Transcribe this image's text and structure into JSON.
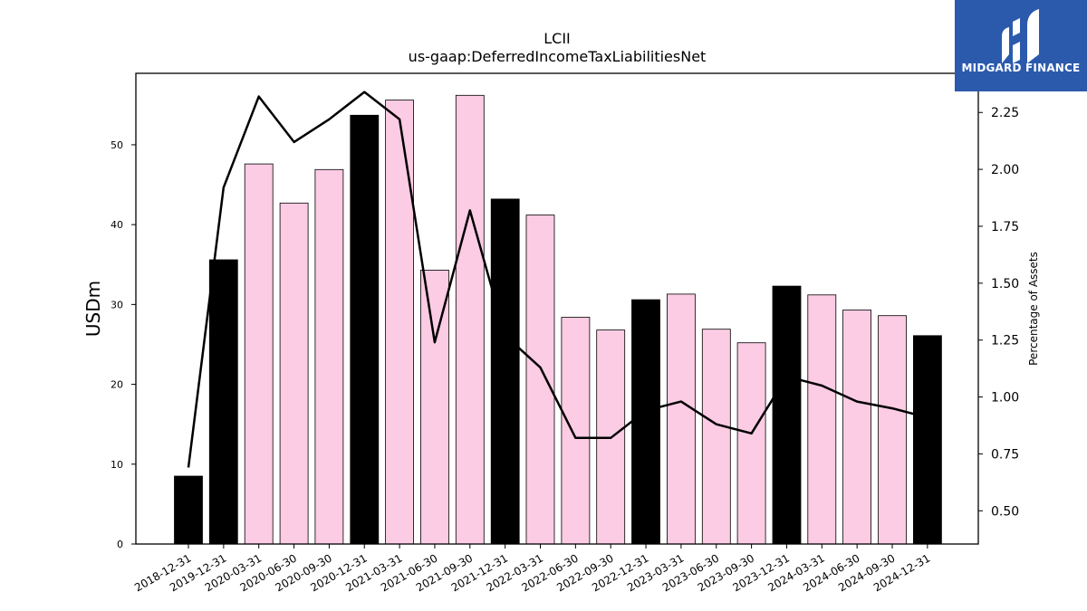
{
  "brand": {
    "name": "MIDGARD FINANCE",
    "color": "#2b5aad"
  },
  "chart_data": {
    "type": "bar",
    "title": "LCII",
    "subtitle": "us-gaap:DeferredIncomeTaxLiabilitiesNet",
    "ylabel": "USDm",
    "y2label": "Percentage of Assets",
    "categories": [
      "2018-12-31",
      "2019-12-31",
      "2020-03-31",
      "2020-06-30",
      "2020-09-30",
      "2020-12-31",
      "2021-03-31",
      "2021-06-30",
      "2021-09-30",
      "2021-12-31",
      "2022-03-31",
      "2022-06-30",
      "2022-09-30",
      "2022-12-31",
      "2023-03-31",
      "2023-06-30",
      "2023-09-30",
      "2023-12-31",
      "2024-03-31",
      "2024-06-30",
      "2024-09-30",
      "2024-12-31"
    ],
    "series": [
      {
        "kind": "bar",
        "axis": "left",
        "values": [
          8.5,
          35.6,
          47.6,
          42.7,
          46.9,
          53.7,
          55.6,
          34.3,
          56.2,
          43.2,
          41.2,
          28.4,
          26.8,
          30.6,
          31.3,
          26.9,
          25.2,
          32.3,
          31.2,
          29.3,
          28.6,
          26.1
        ]
      },
      {
        "kind": "line",
        "axis": "right",
        "values": [
          0.69,
          1.92,
          2.32,
          2.12,
          2.22,
          2.34,
          2.22,
          1.24,
          1.82,
          1.27,
          1.13,
          0.82,
          0.82,
          0.94,
          0.98,
          0.88,
          0.84,
          1.09,
          1.05,
          0.98,
          0.95,
          0.91
        ]
      }
    ],
    "annual_flags": [
      true,
      true,
      false,
      false,
      false,
      true,
      false,
      false,
      false,
      true,
      false,
      false,
      false,
      true,
      false,
      false,
      false,
      true,
      false,
      false,
      false,
      true
    ],
    "ylim": [
      0,
      58.95
    ],
    "y2lim": [
      0.354,
      2.422
    ],
    "yticks": [
      0,
      10,
      20,
      30,
      40,
      50
    ],
    "y2ticks": [
      "0.50",
      "0.75",
      "1.00",
      "1.25",
      "1.50",
      "1.75",
      "2.00",
      "2.25"
    ],
    "colors": {
      "annual_bar": "#000000",
      "quarter_bar": "#fccbe4",
      "line": "#000000"
    },
    "grid": false,
    "legend": "none"
  }
}
